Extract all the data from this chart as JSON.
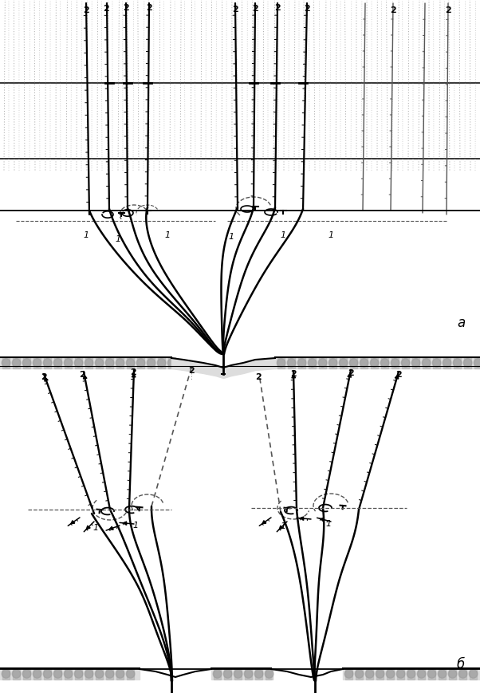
{
  "fig_width": 6.02,
  "fig_height": 8.7,
  "dpi": 100,
  "bg_color": "#ffffff",
  "label_a": "a",
  "label_b": "б"
}
